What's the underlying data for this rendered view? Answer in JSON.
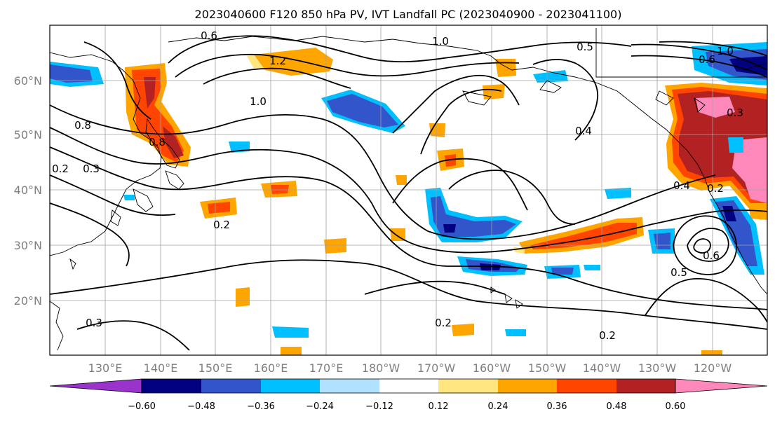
{
  "title": "2023040600 F120 850 hPa PV, IVT Landfall PC (2023040900 - 2023041100)",
  "map": {
    "lat_labels": [
      "60°N",
      "50°N",
      "40°N",
      "30°N",
      "20°N"
    ],
    "lon_labels": [
      "130°E",
      "140°E",
      "150°E",
      "160°E",
      "170°E",
      "180°W",
      "170°W",
      "160°W",
      "150°W",
      "140°W",
      "130°W",
      "120°W"
    ],
    "contour_labels": [
      "0.6",
      "1.0",
      "0.5",
      "1.2",
      "1.0",
      "0.8",
      "0.8",
      "0.2",
      "0.3",
      "0.2",
      "0.4",
      "0.2",
      "0.2",
      "0.5",
      "0.6",
      "0.3",
      "0.2",
      "0.3",
      "0.4",
      "1.0",
      "0.6"
    ]
  },
  "colorbar": {
    "ticks": [
      "−0.60",
      "−0.48",
      "−0.36",
      "−0.24",
      "−0.12",
      "0.12",
      "0.24",
      "0.36",
      "0.48",
      "0.60"
    ],
    "colors": [
      "#9933cc",
      "#000080",
      "#3355cc",
      "#00bfff",
      "#b0e2ff",
      "#ffffff",
      "#ffe680",
      "#ffa500",
      "#ff4500",
      "#b22222",
      "#ff88bb"
    ]
  },
  "colors": {
    "neg_strong": "#000080",
    "neg_mid": "#3355cc",
    "neg_light": "#00bfff",
    "neg_pale": "#b0e2ff",
    "pos_pale": "#ffe680",
    "pos_light": "#ffa500",
    "pos_mid": "#ff4500",
    "pos_strong": "#b22222",
    "pos_max": "#ff88bb"
  }
}
